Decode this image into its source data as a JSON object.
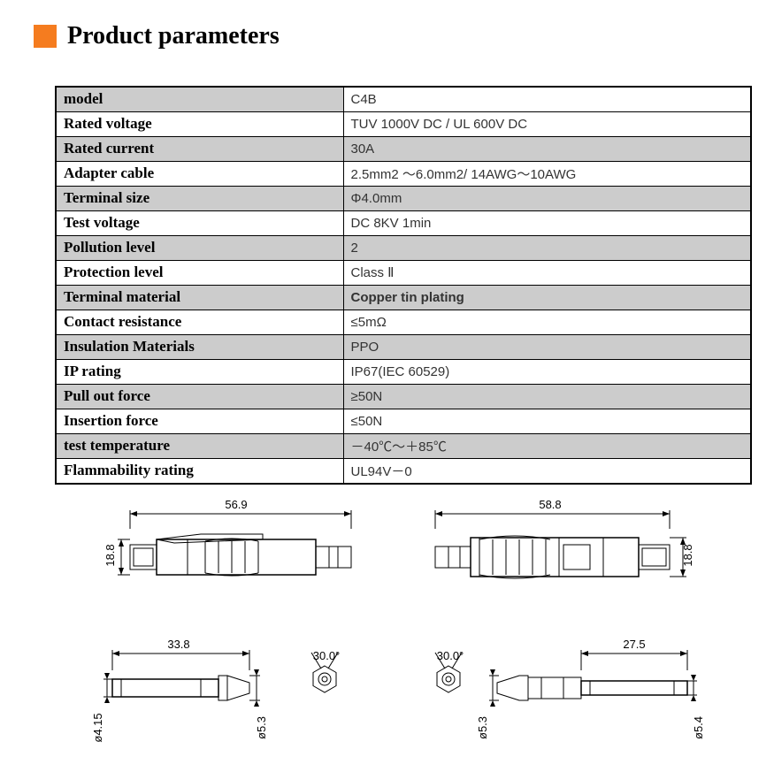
{
  "header": {
    "accent_color": "#f57c1f",
    "title": "Product parameters"
  },
  "table": {
    "rows": [
      {
        "label": "model",
        "value": "C4B",
        "label_shaded": true,
        "value_shaded": false
      },
      {
        "label": "Rated voltage",
        "value": "TUV 1000V DC / UL 600V DC",
        "label_shaded": false,
        "value_shaded": false
      },
      {
        "label": "Rated current",
        "value": "30A",
        "label_shaded": true,
        "value_shaded": true
      },
      {
        "label": "Adapter cable",
        "value": "2.5mm2 ～6.0mm2/ 14AWG～10AWG",
        "label_shaded": false,
        "value_shaded": false
      },
      {
        "label": "Terminal size",
        "value": "Φ4.0mm",
        "label_shaded": true,
        "value_shaded": true
      },
      {
        "label": "Test voltage",
        "value": "DC 8KV 1min",
        "label_shaded": false,
        "value_shaded": false
      },
      {
        "label": "Pollution level",
        "value": "2",
        "label_shaded": true,
        "value_shaded": true
      },
      {
        "label": "Protection level",
        "value": "Class Ⅱ",
        "label_shaded": false,
        "value_shaded": false
      },
      {
        "label": "Terminal material",
        "value": "Copper tin plating",
        "label_shaded": true,
        "value_shaded": true,
        "value_bold": true
      },
      {
        "label": "Contact resistance",
        "value": "≤5mΩ",
        "label_shaded": false,
        "value_shaded": false
      },
      {
        "label": "Insulation Materials",
        "value": "PPO",
        "label_shaded": true,
        "value_shaded": true
      },
      {
        "label": "IP rating",
        "value": "IP67(IEC 60529)",
        "label_shaded": false,
        "value_shaded": false
      },
      {
        "label": "Pull out force",
        "value": "≥50N",
        "label_shaded": true,
        "value_shaded": true
      },
      {
        "label": "Insertion force",
        "value": "≤50N",
        "label_shaded": false,
        "value_shaded": false
      },
      {
        "label": "test temperature",
        "value": "－40℃～＋85℃",
        "label_shaded": true,
        "value_shaded": true
      },
      {
        "label": "Flammability rating",
        "value": "UL94V－0",
        "label_shaded": false,
        "value_shaded": false
      }
    ]
  },
  "diagrams": {
    "left_top": {
      "length": "56.9",
      "height": "18.8"
    },
    "right_top": {
      "length": "58.8",
      "height": "18.8"
    },
    "left_bottom": {
      "length": "33.8",
      "dia_left": "ø4.15",
      "dia_right": "ø5.3",
      "angle": "30.0°"
    },
    "right_bottom": {
      "length": "27.5",
      "dia_left": "ø5.3",
      "dia_right": "ø5.4",
      "angle": "30.0°"
    },
    "stroke_color": "#000000",
    "background": "#ffffff"
  }
}
